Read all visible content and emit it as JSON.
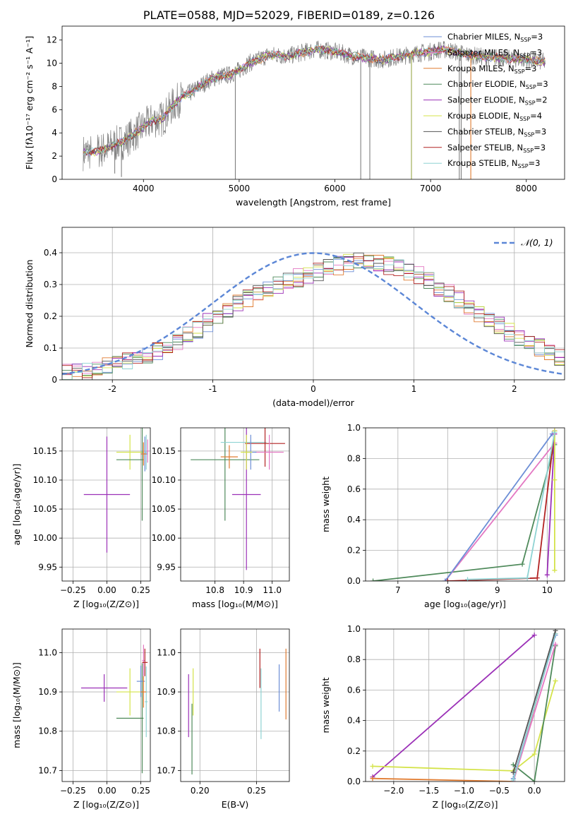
{
  "figure_title": "PLATE=0588, MJD=52029, FIBERID=0189, z=0.126",
  "chart_data": [
    {
      "type": "line",
      "name": "spectrum",
      "xlabel": "wavelength [Angstrom, rest frame]",
      "ylabel": "Flux [fλ10⁻¹⁷ erg cm⁻² s⁻¹ A⁻¹]",
      "xlim": [
        3150,
        8400
      ],
      "ylim": [
        0,
        13.2
      ],
      "xticks": [
        4000,
        5000,
        6000,
        7000,
        8000
      ],
      "yticks": [
        0,
        2,
        4,
        6,
        8,
        10,
        12
      ],
      "grid": false,
      "legend_position": "right",
      "observed_continuum": {
        "x": [
          3370,
          3500,
          3600,
          3700,
          3800,
          3900,
          4000,
          4100,
          4200,
          4300,
          4400,
          4500,
          4600,
          4700,
          4800,
          4900,
          5000,
          5100,
          5200,
          5300,
          5400,
          5500,
          5600,
          5700,
          5800,
          5900,
          6000,
          6100,
          6200,
          6300,
          6400,
          6500,
          6600,
          6700,
          6800,
          6900,
          7000,
          7100,
          7200,
          7300,
          7400,
          7500,
          7600,
          7700,
          7800,
          7900,
          8000,
          8100,
          8200
        ],
        "y": [
          2.3,
          2.4,
          2.6,
          3.0,
          3.3,
          3.9,
          4.5,
          5.1,
          5.2,
          6.3,
          7.1,
          7.5,
          8.1,
          8.6,
          8.9,
          9.0,
          9.4,
          10.0,
          10.3,
          10.7,
          10.7,
          10.6,
          10.8,
          11.0,
          11.2,
          11.1,
          11.0,
          10.8,
          10.6,
          10.5,
          10.4,
          10.3,
          10.5,
          10.6,
          10.8,
          10.9,
          11.0,
          11.2,
          11.1,
          10.9,
          10.7,
          10.6,
          10.5,
          10.5,
          10.4,
          10.4,
          10.3,
          10.2,
          10.1
        ]
      },
      "legend": [
        {
          "label": "Chabrier MILES, N",
          "sub": "SSP",
          "suffix": "=3",
          "color": "#6c8ed6"
        },
        {
          "label": "Salpeter MILES, N",
          "sub": "SSP",
          "suffix": "=3",
          "color": "#e377c2"
        },
        {
          "label": "Kroupa MILES, N",
          "sub": "SSP",
          "suffix": "=3",
          "color": "#e07b30"
        },
        {
          "label": "Chabrier ELODIE, N",
          "sub": "SSP",
          "suffix": "=3",
          "color": "#4f8a5b"
        },
        {
          "label": "Salpeter ELODIE, N",
          "sub": "SSP",
          "suffix": "=2",
          "color": "#9b30b7"
        },
        {
          "label": "Kroupa ELODIE, N",
          "sub": "SSP",
          "suffix": "=4",
          "color": "#d4e34a"
        },
        {
          "label": "Chabrier STELIB, N",
          "sub": "SSP",
          "suffix": "=3",
          "color": "#555555"
        },
        {
          "label": "Salpeter STELIB, N",
          "sub": "SSP",
          "suffix": "=3",
          "color": "#b22222"
        },
        {
          "label": "Kroupa STELIB, N",
          "sub": "SSP",
          "suffix": "=3",
          "color": "#8fd3d3"
        }
      ]
    },
    {
      "type": "histogram",
      "name": "residuals",
      "xlabel": "(data-model)/error",
      "ylabel": "Normed distribution",
      "xlim": [
        -2.5,
        2.5
      ],
      "ylim": [
        0,
        0.48
      ],
      "xticks": [
        -2,
        -1,
        0,
        1,
        2
      ],
      "yticks": [
        0.0,
        0.1,
        0.2,
        0.3,
        0.4
      ],
      "grid": true,
      "reference_label": "𝒩(0, 1)",
      "reference_color": "#5b86d6",
      "bin_width": 0.1,
      "bin_start": -2.5,
      "mean_profile": [
        0.02,
        0.02,
        0.025,
        0.03,
        0.04,
        0.05,
        0.06,
        0.07,
        0.08,
        0.09,
        0.1,
        0.12,
        0.14,
        0.16,
        0.18,
        0.2,
        0.22,
        0.24,
        0.26,
        0.28,
        0.29,
        0.3,
        0.31,
        0.32,
        0.33,
        0.34,
        0.35,
        0.36,
        0.37,
        0.38,
        0.38,
        0.37,
        0.36,
        0.35,
        0.34,
        0.33,
        0.31,
        0.29,
        0.27,
        0.25,
        0.23,
        0.21,
        0.19,
        0.17,
        0.15,
        0.13,
        0.11,
        0.1,
        0.08,
        0.07
      ]
    },
    {
      "type": "errorbar",
      "name": "age-vs-Z",
      "xlabel": "Z [log₁₀(Z/Z⊙)]",
      "ylabel": "age  [log₁₀(age/yr)]",
      "xlim": [
        -0.33,
        0.32
      ],
      "ylim": [
        9.926,
        10.19
      ],
      "xticks": [
        -0.25,
        0.0,
        0.25
      ],
      "xticklabels": [
        "−0.25",
        "0.00",
        "0.25"
      ],
      "yticks": [
        9.95,
        10.0,
        10.05,
        10.1,
        10.15
      ],
      "yticklabels": [
        "9.95",
        "10.00",
        "10.05",
        "10.10",
        "10.15"
      ],
      "grid": true,
      "points": [
        {
          "color": "#9b30b7",
          "x": 0.0,
          "y": 10.075,
          "xerr": 0.17,
          "yerr": 0.1
        },
        {
          "color": "#d4e34a",
          "x": 0.17,
          "y": 10.148,
          "xerr": 0.1,
          "yerr": 0.03
        },
        {
          "color": "#4f8a5b",
          "x": 0.17,
          "y": 10.135,
          "xerr": 0.1,
          "yerr": 0.0
        },
        {
          "color": "#4f8a5b",
          "x": 0.26,
          "y": 10.135,
          "xerr": 0.0,
          "yerr": 0.105
        },
        {
          "color": "#8fd3d3",
          "x": 0.29,
          "y": 10.148,
          "xerr": 0.01,
          "yerr": 0.03
        },
        {
          "color": "#6c8ed6",
          "x": 0.28,
          "y": 10.145,
          "xerr": 0.02,
          "yerr": 0.03
        },
        {
          "color": "#e377c2",
          "x": 0.3,
          "y": 10.15,
          "xerr": 0.01,
          "yerr": 0.02
        },
        {
          "color": "#e07b30",
          "x": 0.27,
          "y": 10.145,
          "xerr": 0.02,
          "yerr": 0.02
        }
      ]
    },
    {
      "type": "errorbar",
      "name": "age-vs-mass",
      "xlabel": "mass [log₁₀(M/M⊙)]",
      "ylabel": "",
      "xlim": [
        10.68,
        11.06
      ],
      "ylim": [
        9.926,
        10.19
      ],
      "xticks": [
        10.8,
        10.9,
        11.0
      ],
      "xticklabels": [
        "10.8",
        "10.9",
        "11.0"
      ],
      "yticks": [
        9.95,
        10.0,
        10.05,
        10.1,
        10.15
      ],
      "yticklabels": [
        "9.95",
        "10.00",
        "10.05",
        "10.10",
        "10.15"
      ],
      "grid": true,
      "points": [
        {
          "color": "#9b30b7",
          "x": 10.91,
          "y": 10.075,
          "xerr": 0.05,
          "yerr": 0.13
        },
        {
          "color": "#4f8a5b",
          "x": 10.835,
          "y": 10.135,
          "xerr": 0.12,
          "yerr": 0.105
        },
        {
          "color": "#8fd3d3",
          "x": 10.9,
          "y": 10.165,
          "xerr": 0.08,
          "yerr": 0.0
        },
        {
          "color": "#b22222",
          "x": 10.975,
          "y": 10.163,
          "xerr": 0.07,
          "yerr": 0.04
        },
        {
          "color": "#e377c2",
          "x": 10.99,
          "y": 10.148,
          "xerr": 0.05,
          "yerr": 0.03
        },
        {
          "color": "#e07b30",
          "x": 10.85,
          "y": 10.14,
          "xerr": 0.03,
          "yerr": 0.02
        },
        {
          "color": "#6c8ed6",
          "x": 10.925,
          "y": 10.148,
          "xerr": 0.02,
          "yerr": 0.03
        },
        {
          "color": "#d4e34a",
          "x": 10.91,
          "y": 10.148,
          "xerr": 0.02,
          "yerr": 0.03
        }
      ]
    },
    {
      "type": "line",
      "name": "mass-weight-vs-age",
      "xlabel": "age  [log₁₀(age/yr)]",
      "ylabel": "mass weight",
      "xlim": [
        6.35,
        10.35
      ],
      "ylim": [
        0,
        1.0
      ],
      "xticks": [
        7,
        8,
        9,
        10
      ],
      "xticklabels": [
        "7",
        "8",
        "9",
        "10"
      ],
      "yticks": [
        0.0,
        0.2,
        0.4,
        0.6,
        0.8,
        1.0
      ],
      "yticklabels": [
        "0.0",
        "0.2",
        "0.4",
        "0.6",
        "0.8",
        "1.0"
      ],
      "grid": true,
      "series": [
        {
          "color": "#4f8a5b",
          "x": [
            6.5,
            9.5,
            10.15
          ],
          "y": [
            0.0,
            0.11,
            0.89
          ]
        },
        {
          "color": "#e377c2",
          "x": [
            7.95,
            10.15
          ],
          "y": [
            0.0,
            0.9
          ]
        },
        {
          "color": "#6c8ed6",
          "x": [
            7.95,
            10.1
          ],
          "y": [
            0.0,
            0.96
          ]
        },
        {
          "color": "#b22222",
          "x": [
            8.0,
            9.8,
            10.15
          ],
          "y": [
            0.0,
            0.02,
            0.98
          ]
        },
        {
          "color": "#9b30b7",
          "x": [
            10.0,
            10.15
          ],
          "y": [
            0.04,
            0.96
          ]
        },
        {
          "color": "#d4e34a",
          "x": [
            10.15,
            10.15,
            10.15
          ],
          "y": [
            0.07,
            0.66,
            0.98
          ]
        },
        {
          "color": "#8fd3d3",
          "x": [
            8.4,
            9.6,
            10.15
          ],
          "y": [
            0.01,
            0.02,
            0.97
          ]
        }
      ]
    },
    {
      "type": "errorbar",
      "name": "mass-vs-Z",
      "xlabel": "Z [log₁₀(Z/Z⊙)]",
      "ylabel": "mass [log₁₀(M/M⊙)]",
      "xlim": [
        -0.33,
        0.32
      ],
      "ylim": [
        10.672,
        11.06
      ],
      "xticks": [
        -0.25,
        0.0,
        0.25
      ],
      "xticklabels": [
        "−0.25",
        "0.00",
        "0.25"
      ],
      "yticks": [
        10.7,
        10.8,
        10.9,
        11.0
      ],
      "yticklabels": [
        "10.7",
        "10.8",
        "10.9",
        "11.0"
      ],
      "grid": true,
      "points": [
        {
          "color": "#9b30b7",
          "x": -0.02,
          "y": 10.91,
          "xerr": 0.17,
          "yerr": 0.035
        },
        {
          "color": "#d4e34a",
          "x": 0.17,
          "y": 10.9,
          "xerr": 0.1,
          "yerr": 0.06
        },
        {
          "color": "#4f8a5b",
          "x": 0.17,
          "y": 10.833,
          "xerr": 0.1,
          "yerr": 0.0
        },
        {
          "color": "#4f8a5b",
          "x": 0.26,
          "y": 10.833,
          "xerr": 0.0,
          "yerr": 0.14
        },
        {
          "color": "#8fd3d3",
          "x": 0.29,
          "y": 10.875,
          "xerr": 0.01,
          "yerr": 0.09
        },
        {
          "color": "#e377c2",
          "x": 0.27,
          "y": 10.98,
          "xerr": 0.01,
          "yerr": 0.04
        },
        {
          "color": "#b22222",
          "x": 0.28,
          "y": 10.975,
          "xerr": 0.02,
          "yerr": 0.035
        },
        {
          "color": "#6c8ed6",
          "x": 0.25,
          "y": 10.927,
          "xerr": 0.03,
          "yerr": 0.04
        },
        {
          "color": "#e07b30",
          "x": 0.27,
          "y": 10.9,
          "xerr": 0.02,
          "yerr": 0.04
        }
      ]
    },
    {
      "type": "errorbar",
      "name": "mass-vs-ebv",
      "xlabel": "E(B-V)",
      "ylabel": "",
      "xlim": [
        0.183,
        0.279
      ],
      "ylim": [
        10.672,
        11.06
      ],
      "xticks": [
        0.2,
        0.25
      ],
      "xticklabels": [
        "0.20",
        "0.25"
      ],
      "yticks": [
        10.7,
        10.8,
        10.9,
        11.0
      ],
      "yticklabels": [
        "10.7",
        "10.8",
        "10.9",
        "11.0"
      ],
      "grid": true,
      "points": [
        {
          "color": "#9b30b7",
          "x": 0.19,
          "y": 10.865,
          "xerr": 0.0,
          "yerr": 0.08
        },
        {
          "color": "#4f8a5b",
          "x": 0.193,
          "y": 10.78,
          "xerr": 0.0,
          "yerr": 0.09
        },
        {
          "color": "#d4e34a",
          "x": 0.194,
          "y": 10.9,
          "xerr": 0.0,
          "yerr": 0.06
        },
        {
          "color": "#b22222",
          "x": 0.253,
          "y": 10.96,
          "xerr": 0.0,
          "yerr": 0.05
        },
        {
          "color": "#8fd3d3",
          "x": 0.254,
          "y": 10.87,
          "xerr": 0.0,
          "yerr": 0.09
        },
        {
          "color": "#6c8ed6",
          "x": 0.27,
          "y": 10.91,
          "xerr": 0.0,
          "yerr": 0.06
        },
        {
          "color": "#e07b30",
          "x": 0.276,
          "y": 10.92,
          "xerr": 0.0,
          "yerr": 0.09
        }
      ]
    },
    {
      "type": "line",
      "name": "mass-weight-vs-Z",
      "xlabel": "Z [log₁₀(Z/Z⊙)]",
      "ylabel": "mass weight",
      "xlim": [
        -2.4,
        0.43
      ],
      "ylim": [
        0,
        1.0
      ],
      "xticks": [
        -2.0,
        -1.5,
        -1.0,
        -0.5,
        0.0
      ],
      "xticklabels": [
        "−2.0",
        "−1.5",
        "−1.0",
        "−0.5",
        "0.0"
      ],
      "yticks": [
        0.0,
        0.2,
        0.4,
        0.6,
        0.8,
        1.0
      ],
      "yticklabels": [
        "0.0",
        "0.2",
        "0.4",
        "0.6",
        "0.8",
        "1.0"
      ],
      "grid": true,
      "series": [
        {
          "color": "#9b30b7",
          "x": [
            -2.3,
            0.0
          ],
          "y": [
            0.03,
            0.96
          ]
        },
        {
          "color": "#e07b30",
          "x": [
            -2.3,
            -0.3,
            0.3
          ],
          "y": [
            0.02,
            0.0,
            0.97
          ]
        },
        {
          "color": "#d4e34a",
          "x": [
            -2.3,
            -0.3,
            0.0,
            0.3
          ],
          "y": [
            0.1,
            0.07,
            0.18,
            0.66
          ]
        },
        {
          "color": "#4f8a5b",
          "x": [
            -0.3,
            0.0,
            0.3
          ],
          "y": [
            0.11,
            0.0,
            0.89
          ]
        },
        {
          "color": "#e377c2",
          "x": [
            -0.3,
            0.3
          ],
          "y": [
            0.0,
            0.9
          ]
        },
        {
          "color": "#6c8ed6",
          "x": [
            -0.3,
            0.3
          ],
          "y": [
            0.02,
            0.96
          ]
        },
        {
          "color": "#8fd3d3",
          "x": [
            -0.3,
            0.3
          ],
          "y": [
            0.01,
            0.97
          ]
        },
        {
          "color": "#555555",
          "x": [
            -0.3,
            0.3
          ],
          "y": [
            0.06,
            0.99
          ]
        }
      ]
    }
  ]
}
